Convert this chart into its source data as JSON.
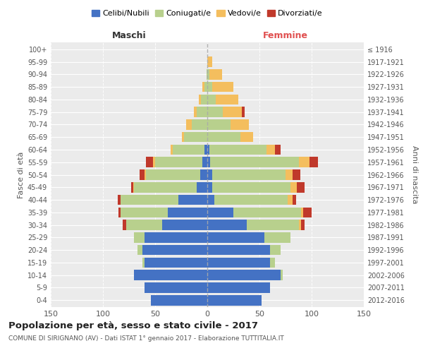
{
  "age_groups": [
    "0-4",
    "5-9",
    "10-14",
    "15-19",
    "20-24",
    "25-29",
    "30-34",
    "35-39",
    "40-44",
    "45-49",
    "50-54",
    "55-59",
    "60-64",
    "65-69",
    "70-74",
    "75-79",
    "80-84",
    "85-89",
    "90-94",
    "95-99",
    "100+"
  ],
  "birth_years": [
    "2012-2016",
    "2007-2011",
    "2002-2006",
    "1997-2001",
    "1992-1996",
    "1987-1991",
    "1982-1986",
    "1977-1981",
    "1972-1976",
    "1967-1971",
    "1962-1966",
    "1957-1961",
    "1952-1956",
    "1947-1951",
    "1942-1946",
    "1937-1941",
    "1932-1936",
    "1927-1931",
    "1922-1926",
    "1917-1921",
    "≤ 1916"
  ],
  "male": {
    "celibi": [
      54,
      60,
      70,
      60,
      62,
      60,
      43,
      38,
      28,
      10,
      7,
      5,
      3,
      0,
      0,
      0,
      0,
      0,
      0,
      0,
      0
    ],
    "coniugati": [
      0,
      0,
      0,
      2,
      5,
      10,
      35,
      45,
      55,
      60,
      52,
      45,
      30,
      22,
      15,
      10,
      6,
      3,
      1,
      0,
      0
    ],
    "vedovi": [
      0,
      0,
      0,
      0,
      0,
      0,
      0,
      0,
      0,
      1,
      1,
      2,
      2,
      2,
      5,
      3,
      2,
      2,
      0,
      0,
      0
    ],
    "divorziati": [
      0,
      0,
      0,
      0,
      0,
      0,
      3,
      2,
      3,
      2,
      5,
      7,
      0,
      0,
      0,
      0,
      0,
      0,
      0,
      0,
      0
    ]
  },
  "female": {
    "nubili": [
      52,
      60,
      70,
      60,
      60,
      55,
      38,
      25,
      7,
      5,
      5,
      3,
      2,
      0,
      0,
      0,
      0,
      0,
      0,
      0,
      0
    ],
    "coniugate": [
      0,
      0,
      2,
      5,
      10,
      25,
      50,
      65,
      70,
      75,
      70,
      85,
      55,
      32,
      22,
      15,
      8,
      5,
      2,
      0,
      0
    ],
    "vedove": [
      0,
      0,
      0,
      0,
      0,
      0,
      2,
      2,
      5,
      6,
      7,
      10,
      8,
      12,
      18,
      18,
      22,
      20,
      12,
      5,
      0
    ],
    "divorziate": [
      0,
      0,
      0,
      0,
      0,
      0,
      3,
      8,
      3,
      7,
      7,
      8,
      5,
      0,
      0,
      3,
      0,
      0,
      0,
      0,
      0
    ]
  },
  "colors": {
    "celibi": "#4472c4",
    "coniugati": "#b8d08d",
    "vedovi": "#f4be5e",
    "divorziati": "#c0392b"
  },
  "title": "Popolazione per età, sesso e stato civile - 2017",
  "subtitle": "COMUNE DI SIRIGNANO (AV) - Dati ISTAT 1° gennaio 2017 - Elaborazione TUTTITALIA.IT",
  "xlabel_left": "Maschi",
  "xlabel_right": "Femmine",
  "ylabel_left": "Fasce di età",
  "ylabel_right": "Anni di nascita",
  "xlim": 150,
  "bg_color": "#ffffff",
  "plot_bg_color": "#ebebeb",
  "grid_color": "#ffffff",
  "legend_labels": [
    "Celibi/Nubili",
    "Coniugati/e",
    "Vedovi/e",
    "Divorziati/e"
  ]
}
